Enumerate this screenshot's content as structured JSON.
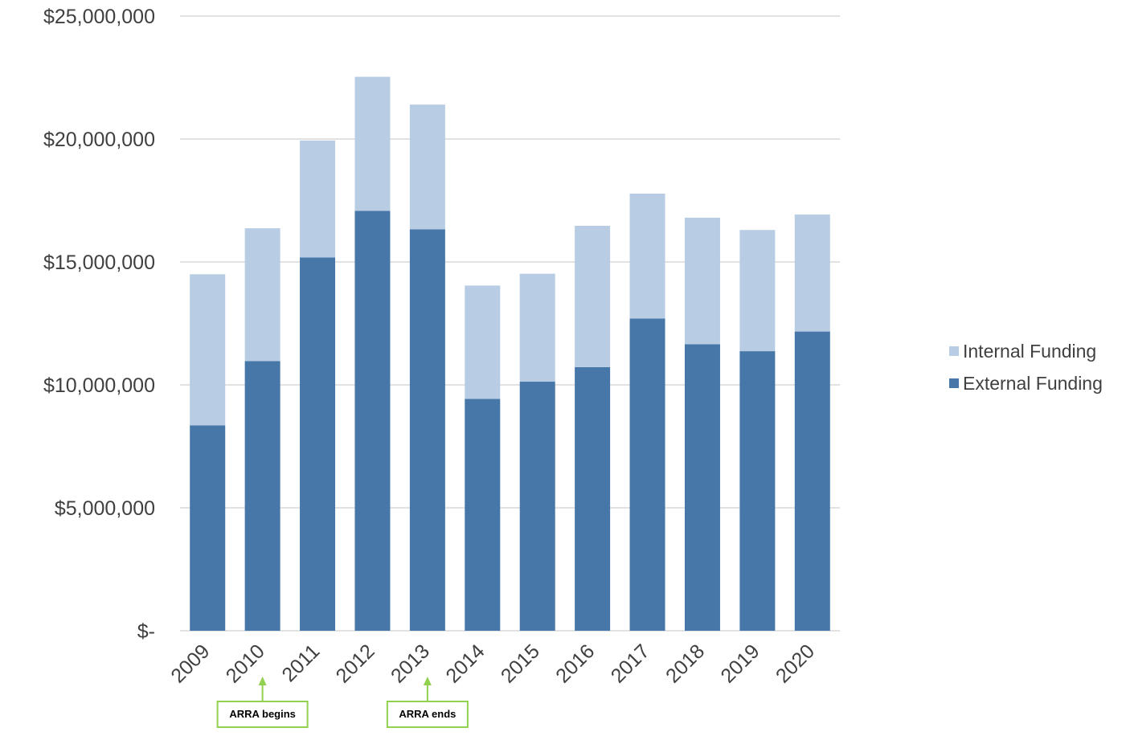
{
  "chart_data": {
    "type": "bar",
    "stacked": true,
    "title": "",
    "xlabel": "",
    "ylabel": "",
    "ylim": [
      0,
      25000000
    ],
    "grid": true,
    "legend_position": "right",
    "categories": [
      "2009",
      "2010",
      "2011",
      "2012",
      "2013",
      "2014",
      "2015",
      "2016",
      "2017",
      "2018",
      "2019",
      "2020"
    ],
    "series": [
      {
        "name": "External Funding",
        "color": "#4677a8",
        "values": [
          8350000,
          10970000,
          15180000,
          17080000,
          16330000,
          9430000,
          10130000,
          10720000,
          12700000,
          11650000,
          11370000,
          12170000
        ]
      },
      {
        "name": "Internal Funding",
        "color": "#b8cce4",
        "values": [
          6150000,
          5400000,
          4760000,
          5450000,
          5070000,
          4610000,
          4390000,
          5750000,
          5080000,
          5150000,
          4930000,
          4760000
        ]
      }
    ],
    "y_ticks": [
      {
        "value": 0,
        "label": "$-"
      },
      {
        "value": 5000000,
        "label": "$5,000,000"
      },
      {
        "value": 10000000,
        "label": "$10,000,000"
      },
      {
        "value": 15000000,
        "label": "$15,000,000"
      },
      {
        "value": 20000000,
        "label": "$20,000,000"
      },
      {
        "value": 25000000,
        "label": "$25,000,000"
      }
    ],
    "legend": [
      {
        "label": "Internal Funding",
        "color": "#b8cce4"
      },
      {
        "label": "External Funding",
        "color": "#4677a8"
      }
    ],
    "annotations": [
      {
        "category": "2010",
        "text": "ARRA begins",
        "color": "#92d050"
      },
      {
        "category": "2013",
        "text": "ARRA ends",
        "color": "#92d050"
      }
    ],
    "gridline_color": "#d9d9d9",
    "axis_color": "#d9d9d9"
  }
}
